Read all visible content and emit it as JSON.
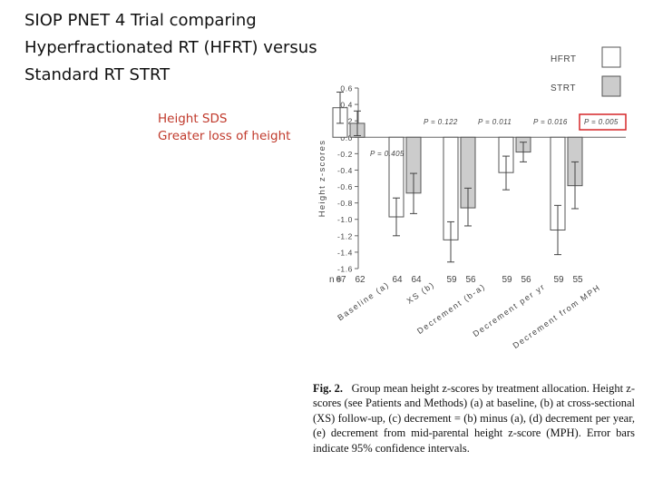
{
  "slide": {
    "title_lines": [
      "SIOP PNET 4 Trial comparing",
      "Hyperfractionated RT (HFRT) versus",
      "Standard RT STRT"
    ],
    "note_lines": [
      "Height SDS",
      "Greater loss of height"
    ]
  },
  "caption": {
    "label": "Fig. 2.",
    "text": "Group mean height z-scores by treatment allocation. Height z-scores (see Patients and Methods) (a) at baseline, (b) at cross-sectional (XS) follow-up, (c) decrement = (b) minus (a), (d) decrement per year, (e) decrement from mid-parental height z-score (MPH). Error bars indicate 95% confidence intervals."
  },
  "chart_data": {
    "type": "bar",
    "ylabel": "Height z-scores",
    "ylim": [
      -1.6,
      0.6
    ],
    "yticks": [
      "0.6",
      "0.4",
      "0.2",
      "0.0",
      "-0.2",
      "-0.4",
      "-0.6",
      "-0.8",
      "-1.0",
      "-1.2",
      "-1.4",
      "-1.6"
    ],
    "categories": [
      "Baseline (a)",
      "XS (b)",
      "Decrement (b-a)",
      "Decrement per yr",
      "Decrement from MPH"
    ],
    "series": [
      {
        "name": "HFRT",
        "color": "#ffffff",
        "values": [
          0.36,
          -0.97,
          -1.25,
          -0.43,
          -1.13
        ],
        "ci_low": [
          0.17,
          -1.2,
          -1.52,
          -0.64,
          -1.43
        ],
        "ci_high": [
          0.55,
          -0.74,
          -1.03,
          -0.23,
          -0.83
        ]
      },
      {
        "name": "STRT",
        "color": "#cccccc",
        "values": [
          0.17,
          -0.68,
          -0.86,
          -0.18,
          -0.59
        ],
        "ci_low": [
          0.02,
          -0.93,
          -1.08,
          -0.3,
          -0.87
        ],
        "ci_high": [
          0.32,
          -0.44,
          -0.62,
          -0.06,
          -0.3
        ]
      }
    ],
    "n_values": [
      [
        "67",
        "62"
      ],
      [
        "64",
        "64"
      ],
      [
        "59",
        "56"
      ],
      [
        "59",
        "56"
      ],
      [
        "59",
        "55"
      ]
    ],
    "n_label": "n =",
    "p_values": [
      "P = 0.405",
      "P = 0.122",
      "P = 0.011",
      "P = 0.016",
      "P = 0.005"
    ],
    "highlighted_p_index": 4,
    "highlight_color": "#d62728",
    "legend_placement": "top-right"
  }
}
